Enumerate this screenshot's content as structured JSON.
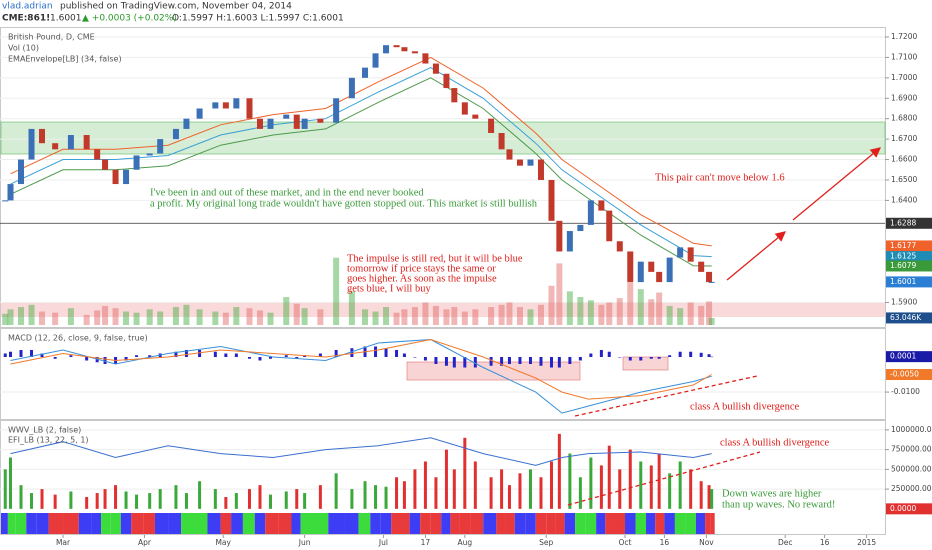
{
  "header": {
    "author": "vlad.adrian",
    "published": "published on TradingView.com, November 04, 2014",
    "symbol": "CME:861!",
    "last": "1.6001",
    "change": "▲ +0.0003 (+0.02%)",
    "ohlc": "O:1.5997 H:1.6003 L:1.5997 C:1.6001"
  },
  "chart_data": [
    {
      "type": "candlestick",
      "title": "British Pound, D, CME",
      "indicators": [
        "Vol (10)",
        "EMAEnvelope[LB] (34, false)"
      ],
      "colors": {
        "up": "#3b6fb6",
        "down": "#c0392b"
      },
      "x": [
        38,
        40,
        44,
        48,
        52,
        57,
        63,
        69,
        73,
        76,
        80,
        84,
        88,
        93,
        97,
        103,
        107,
        112,
        118,
        122,
        126,
        131,
        135,
        139,
        145,
        149,
        152,
        158,
        164,
        170,
        175,
        179,
        183,
        187,
        190,
        194,
        198,
        202,
        206,
        209,
        213,
        217,
        223,
        227,
        230,
        234,
        238,
        242,
        246,
        249,
        253,
        257,
        261,
        265,
        268,
        272,
        276,
        280,
        284,
        287,
        291,
        295,
        299,
        303,
        306,
        307
      ],
      "close": [
        1.64,
        1.648,
        1.66,
        1.675,
        1.668,
        1.665,
        1.672,
        1.665,
        1.66,
        1.655,
        1.648,
        1.655,
        1.662,
        1.663,
        1.67,
        1.675,
        1.68,
        1.685,
        1.688,
        1.685,
        1.69,
        1.68,
        1.675,
        1.68,
        1.682,
        1.675,
        1.68,
        1.678,
        1.69,
        1.7,
        1.705,
        1.712,
        1.716,
        1.715,
        1.713,
        1.712,
        1.707,
        1.702,
        1.695,
        1.688,
        1.682,
        1.68,
        1.673,
        1.665,
        1.66,
        1.657,
        1.66,
        1.65,
        1.63,
        1.615,
        1.625,
        1.628,
        1.64,
        1.635,
        1.62,
        1.615,
        1.6,
        1.61,
        1.605,
        1.6,
        1.612,
        1.617,
        1.61,
        1.605,
        1.6,
        1.6001
      ],
      "volume": [
        100,
        140,
        160,
        180,
        120,
        110,
        150,
        90,
        130,
        170,
        150,
        120,
        110,
        140,
        120,
        160,
        180,
        140,
        120,
        110,
        160,
        150,
        130,
        110,
        250,
        190,
        150,
        140,
        600,
        300,
        140,
        120,
        160,
        110,
        140,
        160,
        200,
        170,
        140,
        160,
        120,
        140,
        160,
        180,
        200,
        160,
        140,
        180,
        350,
        550,
        300,
        250,
        220,
        180,
        200,
        240,
        380,
        320,
        230,
        290,
        170,
        150,
        200,
        170,
        210,
        63.046
      ],
      "volume_lim": [
        0,
        2650
      ],
      "volume_label": {
        "value": 63.046,
        "label": "63.046K",
        "color": "#1e4f8c"
      },
      "lines": {
        "x": [
          40,
          60,
          80,
          100,
          120,
          140,
          160,
          180,
          200,
          220,
          240,
          250,
          260,
          280,
          300,
          307
        ],
        "series": [
          {
            "color": "#f0622a",
            "values": [
              1.653,
              1.665,
              1.665,
              1.667,
              1.677,
              1.682,
              1.685,
              1.698,
              1.71,
              1.695,
              1.673,
              1.66,
              1.651,
              1.633,
              1.619,
              1.6177
            ]
          },
          {
            "color": "#3aa0d8",
            "values": [
              1.648,
              1.66,
              1.66,
              1.662,
              1.672,
              1.677,
              1.68,
              1.693,
              1.705,
              1.69,
              1.668,
              1.655,
              1.646,
              1.628,
              1.613,
              1.6125
            ]
          },
          {
            "color": "#4d9a4d",
            "values": [
              1.643,
              1.655,
              1.655,
              1.657,
              1.667,
              1.672,
              1.675,
              1.688,
              1.7,
              1.685,
              1.663,
              1.65,
              1.641,
              1.623,
              1.608,
              1.6079
            ]
          }
        ]
      },
      "xlim": [
        36,
        373
      ],
      "xticks": [
        {
          "value": 60,
          "label": "Mar"
        },
        {
          "value": 91,
          "label": "Apr"
        },
        {
          "value": 121,
          "label": "May"
        },
        {
          "value": 152,
          "label": "Jun"
        },
        {
          "value": 182,
          "label": "Jul"
        },
        {
          "value": 198,
          "label": "17"
        },
        {
          "value": 213,
          "label": "Aug"
        },
        {
          "value": 244,
          "label": "Sep"
        },
        {
          "value": 274,
          "label": "Oct"
        },
        {
          "value": 289,
          "label": "16"
        },
        {
          "value": 305,
          "label": "Nov"
        },
        {
          "value": 335,
          "label": "Dec"
        },
        {
          "value": 350,
          "label": "16"
        },
        {
          "value": 366,
          "label": "2015"
        }
      ],
      "ylim": [
        1.579,
        1.7244
      ],
      "yticks": [
        {
          "value": 1.72,
          "label": "1.7200"
        },
        {
          "value": 1.71,
          "label": "1.7100"
        },
        {
          "value": 1.7,
          "label": "1.7000"
        },
        {
          "value": 1.69,
          "label": "1.6900"
        },
        {
          "value": 1.68,
          "label": "1.6800"
        },
        {
          "value": 1.67,
          "label": "1.6700"
        },
        {
          "value": 1.66,
          "label": "1.6600"
        },
        {
          "value": 1.65,
          "label": "1.6500"
        },
        {
          "value": 1.64,
          "label": "1.6400"
        },
        {
          "value": 1.59,
          "label": "1.5900"
        }
      ],
      "price_labels": [
        {
          "value": 1.6288,
          "color": "#333333"
        },
        {
          "value": 1.6177,
          "color": "#f0622a"
        },
        {
          "value": 1.6125,
          "color": "#1e8cb4"
        },
        {
          "value": 1.6079,
          "color": "#3a9a3a"
        },
        {
          "value": 1.6001,
          "color": "#2a7fd4"
        }
      ],
      "annotations": [
        {
          "color": "#3a9a3a",
          "lines": [
            "I've been in and out of these market, and in the end never booked",
            "a profit. My original long trade wouldn't have gotten stopped out. This market is still bullish"
          ]
        },
        {
          "color": "#e0201c",
          "lines": [
            "This pair can't move below 1.6"
          ]
        },
        {
          "color": "#e0201c",
          "lines": [
            "The impulse is still red, but it will be blue",
            "tomorrow if price stays the same or",
            "goes higher. As soon as the impulse",
            "gets blue, I will buy"
          ]
        }
      ]
    },
    {
      "type": "macd",
      "title": "MACD (12, 26, close, 9, false, true)",
      "histogram_color": "#2323c8",
      "histogram": [
        0.001,
        0.0015,
        0.002,
        0.002,
        0.001,
        -0.0005,
        0.0005,
        -0.001,
        -0.0015,
        -0.002,
        -0.002,
        -0.001,
        0.0005,
        0.0005,
        0.001,
        0.0015,
        0.002,
        0.002,
        0.0015,
        0.001,
        0.001,
        -0.0005,
        -0.001,
        -0.0005,
        0.0005,
        -0.0005,
        0.0005,
        0.001,
        0.002,
        0.0025,
        0.003,
        0.003,
        0.0025,
        0.002,
        0.001,
        0.0,
        -0.001,
        -0.002,
        -0.0025,
        -0.003,
        -0.003,
        -0.003,
        -0.0025,
        -0.0025,
        -0.002,
        -0.002,
        -0.002,
        -0.0025,
        -0.003,
        -0.003,
        -0.002,
        -0.001,
        0.001,
        0.002,
        0.0015,
        0.0,
        -0.001,
        -0.001,
        -0.0005,
        -0.0005,
        0.0005,
        0.0015,
        0.0015,
        0.0012,
        0.0008,
        0.0001
      ],
      "series": [
        {
          "color": "#3a8fd8",
          "values": [
            -0.001,
            0.002,
            -0.002,
            0.001,
            0.003,
            0.0,
            -0.001,
            0.004,
            0.005,
            -0.003,
            -0.01,
            -0.016,
            -0.014,
            -0.01,
            -0.007,
            -0.0055
          ]
        },
        {
          "color": "#f07a2a",
          "values": [
            -0.002,
            0.001,
            -0.001,
            0.0,
            0.002,
            0.001,
            0.0,
            0.002,
            0.005,
            0.0,
            -0.006,
            -0.01,
            -0.012,
            -0.011,
            -0.008,
            -0.005
          ]
        }
      ],
      "ylim": [
        -0.0174,
        0.0077
      ],
      "yticks": [
        {
          "value": -0.01,
          "label": "-0.0100"
        }
      ],
      "price_labels": [
        {
          "value": 0.0001,
          "label": "0.0001",
          "color": "#1a1aa8"
        },
        {
          "value": -0.005,
          "label": "-0.0050",
          "color": "#f07a2a"
        }
      ],
      "annotations": [
        {
          "color": "#e0201c",
          "lines": [
            "class A bullish divergence"
          ]
        }
      ]
    },
    {
      "type": "oscillator",
      "title": "WWV_LB (2, false)",
      "subtitle": "EFI_LB (13, 22, 5, 1)",
      "bars": [
        500000,
        650000,
        300000,
        200000,
        250000,
        180000,
        220000,
        150000,
        200000,
        250000,
        300000,
        220000,
        180000,
        200000,
        250000,
        300000,
        200000,
        350000,
        250000,
        150000,
        200000,
        250000,
        300000,
        180000,
        220000,
        250000,
        200000,
        300000,
        450000,
        250000,
        350000,
        300000,
        280000,
        400000,
        350000,
        500000,
        600000,
        400000,
        750000,
        500000,
        900000,
        600000,
        400000,
        500000,
        300000,
        450000,
        500000,
        400000,
        600000,
        950000,
        700000,
        400000,
        650000,
        550000,
        800000,
        500000,
        750000,
        600000,
        550000,
        700000,
        450000,
        600000,
        500000,
        350000,
        300000,
        250000
      ],
      "bar_colors": {
        "up": "#3aa83a",
        "down": "#e03030"
      },
      "series": [
        {
          "color": "#3a6fd0",
          "values": [
            700000,
            850000,
            650000,
            800000,
            700000,
            650000,
            750000,
            800000,
            900000,
            700000,
            550000,
            650000,
            700000,
            720000,
            650000,
            700000
          ]
        }
      ],
      "ylim": [
        -40000,
        1100000
      ],
      "yticks": [
        {
          "value": 1000000,
          "label": "1000000.0000"
        },
        {
          "value": 750000,
          "label": "750000.0000"
        },
        {
          "value": 500000,
          "label": "500000.0000"
        },
        {
          "value": 250000,
          "label": "250000.0000"
        }
      ],
      "price_labels": [
        {
          "value": 0,
          "label": "0.0000",
          "color": "#e03030"
        }
      ],
      "strip": [
        "#3d3df5",
        "#3ddc3d",
        "#3ddc3d",
        "#3d3df5",
        "#3d3df5",
        "#e83a3a",
        "#e83a3a",
        "#3d3df5",
        "#3d3df5",
        "#3ddc3d",
        "#3ddc3d",
        "#3d3df5",
        "#e83a3a",
        "#e83a3a",
        "#3d3df5",
        "#3d3df5",
        "#3ddc3d",
        "#3ddc3d",
        "#3d3df5",
        "#e83a3a",
        "#3d3df5",
        "#3ddc3d",
        "#3d3df5",
        "#e83a3a",
        "#e83a3a",
        "#3d3df5",
        "#3ddc3d",
        "#3ddc3d",
        "#3d3df5",
        "#3d3df5",
        "#3ddc3d",
        "#3d3df5",
        "#3d3df5",
        "#e83a3a",
        "#e83a3a",
        "#3d3df5",
        "#e83a3a",
        "#e83a3a",
        "#3d3df5",
        "#e83a3a",
        "#e83a3a",
        "#e83a3a",
        "#3d3df5",
        "#e83a3a",
        "#e83a3a",
        "#3d3df5",
        "#3d3df5",
        "#e83a3a",
        "#e83a3a",
        "#e83a3a",
        "#3d3df5",
        "#3ddc3d",
        "#3ddc3d",
        "#3d3df5",
        "#e83a3a",
        "#e83a3a",
        "#3d3df5",
        "#3ddc3d",
        "#3d3df5",
        "#e83a3a",
        "#3d3df5",
        "#3ddc3d",
        "#3ddc3d",
        "#3d3df5",
        "#e83a3a",
        "#e83a3a"
      ],
      "annotations": [
        {
          "color": "#e0201c",
          "lines": [
            "class A bullish divergence"
          ]
        },
        {
          "color": "#3a9a3a",
          "lines": [
            "Down waves are higher",
            "than up waves. No reward!"
          ]
        }
      ]
    }
  ]
}
